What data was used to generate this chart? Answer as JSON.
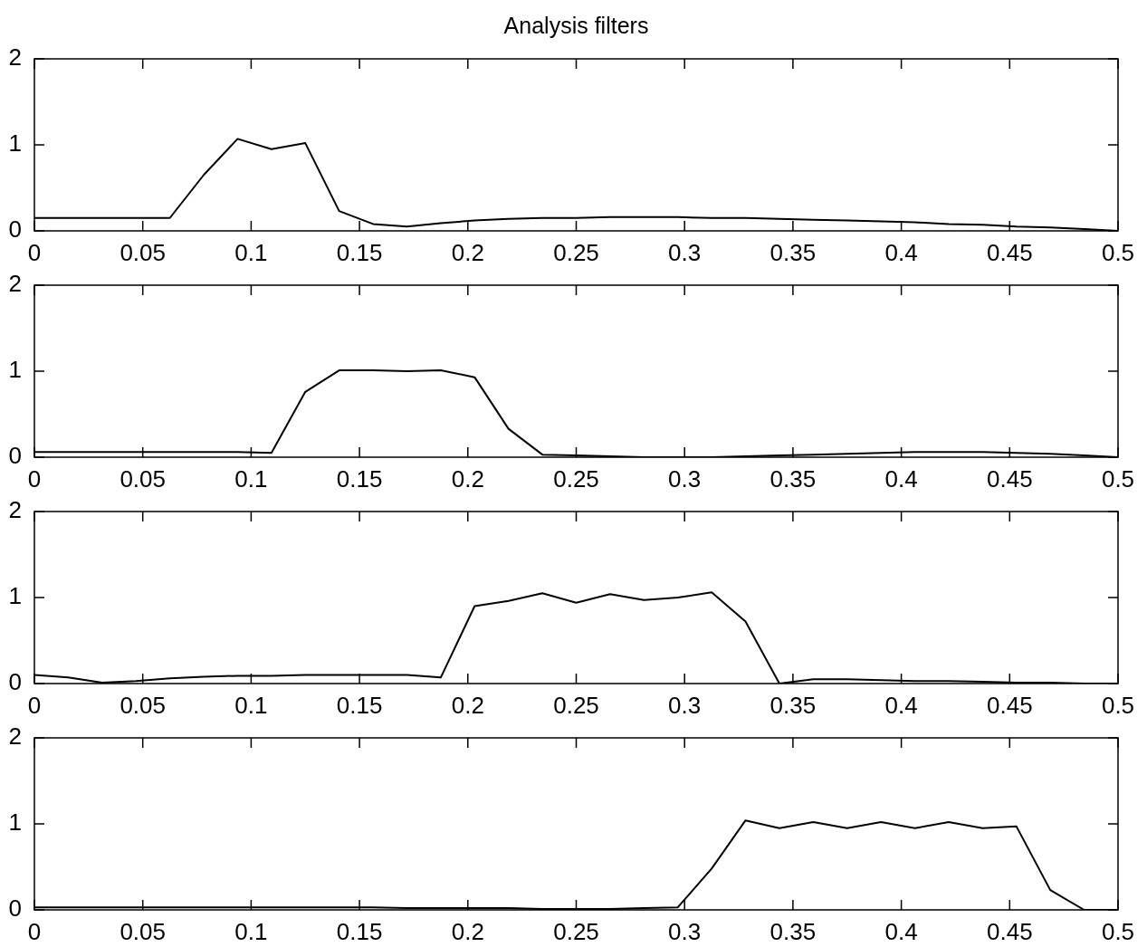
{
  "chart_data": [
    {
      "type": "line",
      "title": "Analysis filters",
      "x": [
        0,
        0.015625,
        0.03125,
        0.046875,
        0.0625,
        0.078125,
        0.09375,
        0.109375,
        0.125,
        0.140625,
        0.15625,
        0.171875,
        0.1875,
        0.203125,
        0.21875,
        0.234375,
        0.25,
        0.265625,
        0.28125,
        0.296875,
        0.3125,
        0.328125,
        0.34375,
        0.359375,
        0.375,
        0.390625,
        0.40625,
        0.421875,
        0.4375,
        0.453125,
        0.46875,
        0.484375,
        0.5
      ],
      "series": [
        {
          "color": "#000000",
          "values": [
            0.15,
            0.15,
            0.15,
            0.15,
            0.15,
            0.65,
            1.07,
            0.95,
            1.02,
            0.23,
            0.08,
            0.05,
            0.09,
            0.12,
            0.14,
            0.15,
            0.15,
            0.16,
            0.16,
            0.16,
            0.15,
            0.15,
            0.14,
            0.13,
            0.12,
            0.11,
            0.1,
            0.08,
            0.07,
            0.05,
            0.04,
            0.02,
            0
          ]
        }
      ],
      "xlim": [
        0,
        0.5
      ],
      "xticks": [
        0,
        0.05,
        0.1,
        0.15,
        0.2,
        0.25,
        0.3,
        0.35,
        0.4,
        0.45,
        0.5
      ],
      "ylim": [
        0,
        2
      ],
      "yticks": [
        0,
        1,
        2
      ]
    },
    {
      "type": "line",
      "x": [
        0,
        0.015625,
        0.03125,
        0.046875,
        0.0625,
        0.078125,
        0.09375,
        0.109375,
        0.125,
        0.140625,
        0.15625,
        0.171875,
        0.1875,
        0.203125,
        0.21875,
        0.234375,
        0.25,
        0.265625,
        0.28125,
        0.296875,
        0.3125,
        0.328125,
        0.34375,
        0.359375,
        0.375,
        0.390625,
        0.40625,
        0.421875,
        0.4375,
        0.453125,
        0.46875,
        0.484375,
        0.5
      ],
      "series": [
        {
          "color": "#000000",
          "values": [
            0.06,
            0.06,
            0.06,
            0.06,
            0.06,
            0.06,
            0.06,
            0.05,
            0.76,
            1.01,
            1.01,
            1.0,
            1.01,
            0.93,
            0.33,
            0.03,
            0.02,
            0.01,
            0,
            0,
            0,
            0.01,
            0.02,
            0.03,
            0.04,
            0.05,
            0.06,
            0.06,
            0.06,
            0.05,
            0.04,
            0.02,
            0
          ]
        }
      ],
      "xlim": [
        0,
        0.5
      ],
      "xticks": [
        0,
        0.05,
        0.1,
        0.15,
        0.2,
        0.25,
        0.3,
        0.35,
        0.4,
        0.45,
        0.5
      ],
      "ylim": [
        0,
        2
      ],
      "yticks": [
        0,
        1,
        2
      ]
    },
    {
      "type": "line",
      "x": [
        0,
        0.015625,
        0.03125,
        0.046875,
        0.0625,
        0.078125,
        0.09375,
        0.109375,
        0.125,
        0.140625,
        0.15625,
        0.171875,
        0.1875,
        0.203125,
        0.21875,
        0.234375,
        0.25,
        0.265625,
        0.28125,
        0.296875,
        0.3125,
        0.328125,
        0.34375,
        0.359375,
        0.375,
        0.390625,
        0.40625,
        0.421875,
        0.4375,
        0.453125,
        0.46875,
        0.484375,
        0.5
      ],
      "series": [
        {
          "color": "#000000",
          "values": [
            0.1,
            0.07,
            0.01,
            0.03,
            0.06,
            0.08,
            0.09,
            0.09,
            0.1,
            0.1,
            0.1,
            0.1,
            0.07,
            0.9,
            0.96,
            1.05,
            0.94,
            1.04,
            0.97,
            1.0,
            1.06,
            0.72,
            0,
            0.05,
            0.05,
            0.04,
            0.03,
            0.03,
            0.02,
            0.01,
            0.01,
            0,
            0
          ]
        }
      ],
      "xlim": [
        0,
        0.5
      ],
      "xticks": [
        0,
        0.05,
        0.1,
        0.15,
        0.2,
        0.25,
        0.3,
        0.35,
        0.4,
        0.45,
        0.5
      ],
      "ylim": [
        0,
        2
      ],
      "yticks": [
        0,
        1,
        2
      ]
    },
    {
      "type": "line",
      "x": [
        0,
        0.015625,
        0.03125,
        0.046875,
        0.0625,
        0.078125,
        0.09375,
        0.109375,
        0.125,
        0.140625,
        0.15625,
        0.171875,
        0.1875,
        0.203125,
        0.21875,
        0.234375,
        0.25,
        0.265625,
        0.28125,
        0.296875,
        0.3125,
        0.328125,
        0.34375,
        0.359375,
        0.375,
        0.390625,
        0.40625,
        0.421875,
        0.4375,
        0.453125,
        0.46875,
        0.484375,
        0.5
      ],
      "series": [
        {
          "color": "#000000",
          "values": [
            0.03,
            0.03,
            0.03,
            0.03,
            0.03,
            0.03,
            0.03,
            0.03,
            0.03,
            0.03,
            0.03,
            0.02,
            0.02,
            0.02,
            0.02,
            0.01,
            0.01,
            0.01,
            0.02,
            0.03,
            0.48,
            1.04,
            0.95,
            1.02,
            0.95,
            1.02,
            0.95,
            1.02,
            0.95,
            0.97,
            0.23,
            0,
            0
          ]
        }
      ],
      "xlim": [
        0,
        0.5
      ],
      "xticks": [
        0,
        0.05,
        0.1,
        0.15,
        0.2,
        0.25,
        0.3,
        0.35,
        0.4,
        0.45,
        0.5
      ],
      "ylim": [
        0,
        2
      ],
      "yticks": [
        0,
        1,
        2
      ]
    }
  ]
}
